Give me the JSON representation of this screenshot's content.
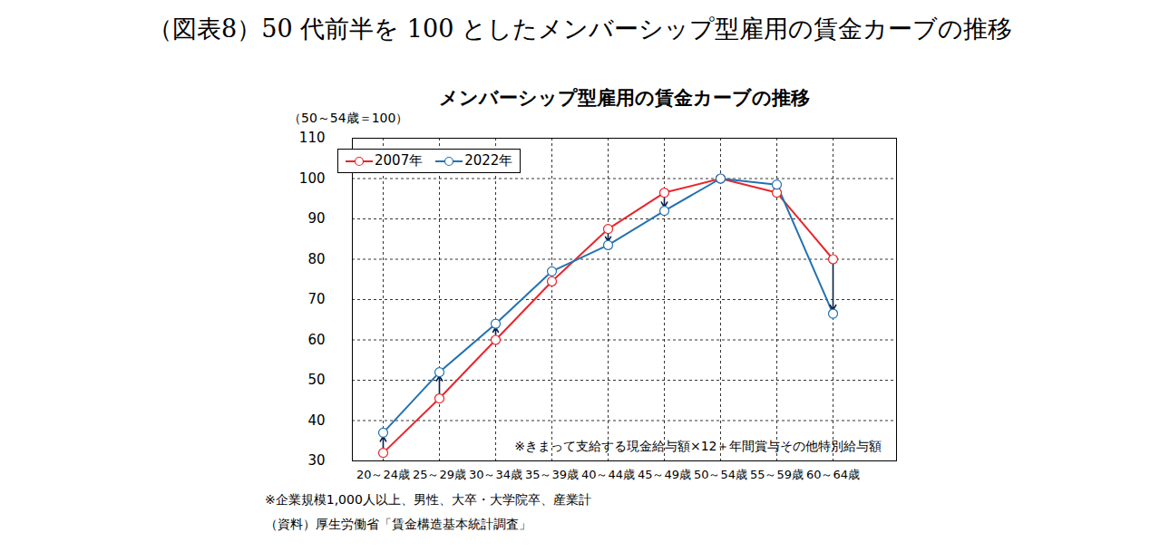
{
  "page_title": "（図表8）50 代前半を 100 としたメンバーシップ型雇用の賃金カーブの推移",
  "chart_data": {
    "type": "line",
    "title": "メンバーシップ型雇用の賃金カーブの推移",
    "y_label": "（50～54歳＝100）",
    "categories": [
      "20～24歳",
      "25～29歳",
      "30～34歳",
      "35～39歳",
      "40～44歳",
      "45～49歳",
      "50～54歳",
      "55～59歳",
      "60～64歳"
    ],
    "series": [
      {
        "name": "2007年",
        "color": "#e8262b",
        "marker": "circle",
        "values": [
          32,
          45.5,
          60,
          74.5,
          87.5,
          96.5,
          100,
          96.5,
          80
        ]
      },
      {
        "name": "2022年",
        "color": "#2372b0",
        "marker": "circle",
        "values": [
          37,
          52,
          64,
          77,
          83.5,
          92,
          100,
          98.5,
          66.5
        ]
      }
    ],
    "ylim": [
      30,
      110
    ],
    "yticks": [
      30,
      40,
      50,
      60,
      70,
      80,
      90,
      100,
      110
    ],
    "grid": true,
    "legend": "top-left",
    "annotation": "※きまって支給する現金給与額×12＋年間賞与その他特別給与額",
    "notes": [
      "※企業規模1,000人以上、男性、大卒・大学院卒、産業計",
      "（資料）厚生労働省「賃金構造基本統計調査」"
    ]
  }
}
